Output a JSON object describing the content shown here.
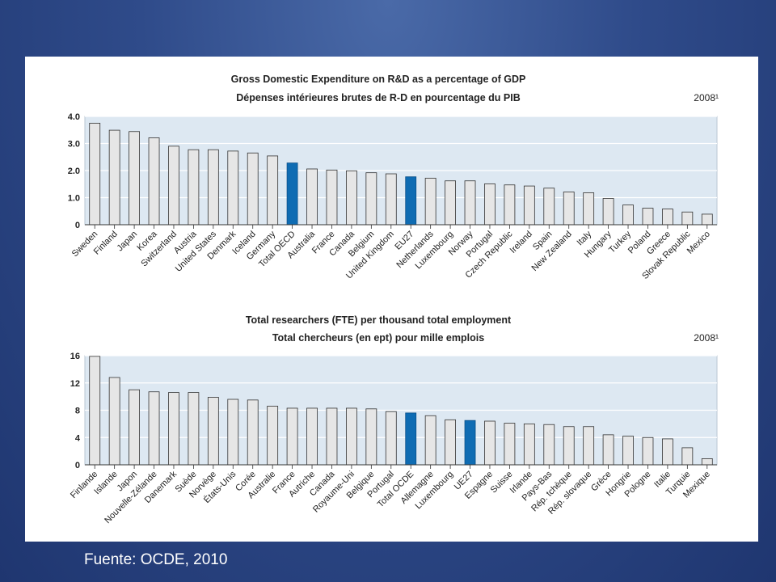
{
  "source": "Fuente: OCDE, 2010",
  "colors": {
    "bar": "#e6e6e6",
    "highlight": "#0f6cb3",
    "plot_bg": "#dde8f2",
    "grid": "#ffffff"
  },
  "chart_data": [
    {
      "type": "bar",
      "title": "Gross Domestic Expenditure on R&D as a percentage of GDP",
      "subtitle": "Dépenses intérieures brutes de R-D en pourcentage du PIB",
      "year_label": "2008¹",
      "ylim": [
        0,
        4.0
      ],
      "yticks": [
        "0",
        "1.0",
        "2.0",
        "3.0",
        "4.0"
      ],
      "categories": [
        "Sweden",
        "Finland",
        "Japan",
        "Korea",
        "Switzerland",
        "Austria",
        "United States",
        "Denmark",
        "Iceland",
        "Germany",
        "Total OECD",
        "Australia",
        "France",
        "Canada",
        "Belgium",
        "United Kingdom",
        "EU27",
        "Netherlands",
        "Luxembourg",
        "Norway",
        "Portugal",
        "Czech Republic",
        "Ireland",
        "Spain",
        "New Zealand",
        "Italy",
        "Hungary",
        "Turkey",
        "Poland",
        "Greece",
        "Slovak Republic",
        "Mexico"
      ],
      "values": [
        3.75,
        3.49,
        3.44,
        3.21,
        2.9,
        2.77,
        2.77,
        2.72,
        2.65,
        2.54,
        2.28,
        2.06,
        2.02,
        1.99,
        1.92,
        1.88,
        1.77,
        1.72,
        1.62,
        1.62,
        1.51,
        1.47,
        1.43,
        1.35,
        1.21,
        1.18,
        0.97,
        0.73,
        0.61,
        0.58,
        0.47,
        0.39
      ],
      "highlight": [
        "Total OECD",
        "EU27"
      ],
      "grid": true
    },
    {
      "type": "bar",
      "title": "Total researchers (FTE) per thousand total employment",
      "subtitle": "Total chercheurs (en ept) pour mille emplois",
      "year_label": "2008¹",
      "ylim": [
        0,
        16
      ],
      "yticks": [
        "0",
        "4",
        "8",
        "12",
        "16"
      ],
      "categories": [
        "Finlande",
        "Islande",
        "Japon",
        "Nouvelle-Zélande",
        "Danemark",
        "Suède",
        "Norvège",
        "États-Unis",
        "Corée",
        "Australie",
        "France",
        "Autriche",
        "Canada",
        "Royaume-Uni",
        "Belgique",
        "Portugal",
        "Total OCDE",
        "Allemagne",
        "Luxembourg",
        "UE27",
        "Espagne",
        "Suisse",
        "Irlande",
        "Pays-Bas",
        "Rép. tchèque",
        "Rép. slovaque",
        "Grèce",
        "Hongrie",
        "Pologne",
        "Italie",
        "Turquie",
        "Mexique"
      ],
      "values": [
        15.9,
        12.8,
        11.0,
        10.7,
        10.6,
        10.6,
        9.9,
        9.6,
        9.5,
        8.6,
        8.3,
        8.3,
        8.3,
        8.3,
        8.2,
        7.8,
        7.6,
        7.2,
        6.6,
        6.5,
        6.4,
        6.1,
        6.0,
        5.9,
        5.6,
        5.6,
        4.4,
        4.2,
        4.0,
        3.8,
        2.5,
        0.9
      ],
      "highlight": [
        "Total OCDE",
        "UE27"
      ],
      "grid": true
    }
  ]
}
